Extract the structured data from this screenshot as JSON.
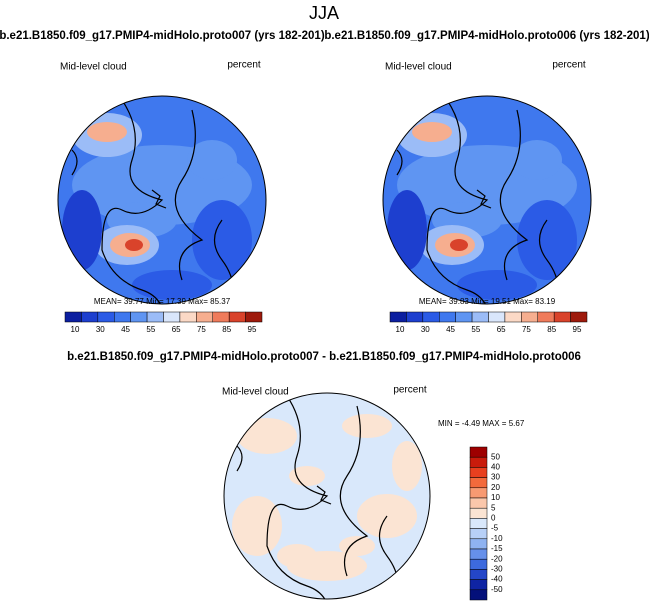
{
  "figure_title": "JJA",
  "panels": [
    {
      "title": "b.e21.B1850.f09_g17.PMIP4-midHolo.proto007 (yrs 182-201)",
      "variable": "Mid-level cloud",
      "units": "percent",
      "stats": "MEAN=  39.77  Min=  17.39  Max=  85.37",
      "colorbar_labels": [
        10,
        30,
        45,
        55,
        65,
        75,
        85,
        95
      ]
    },
    {
      "title": "b.e21.B1850.f09_g17.PMIP4-midHolo.proto006 (yrs 182-201)",
      "variable": "Mid-level cloud",
      "units": "percent",
      "stats": "MEAN=  39.83  Min=  19.51  Max=  83.19",
      "colorbar_labels": [
        10,
        30,
        45,
        55,
        65,
        75,
        85,
        95
      ]
    }
  ],
  "difference": {
    "title": "b.e21.B1850.f09_g17.PMIP4-midHolo.proto007 - b.e21.B1850.f09_g17.PMIP4-midHolo.proto006",
    "variable": "Mid-level cloud",
    "units": "percent",
    "stats": "MIN =  -4.49 MAX =   5.67",
    "colorbar_labels": [
      50,
      40,
      30,
      20,
      10,
      5,
      0,
      -5,
      -10,
      -15,
      -20,
      -30,
      -40,
      -50
    ]
  }
}
